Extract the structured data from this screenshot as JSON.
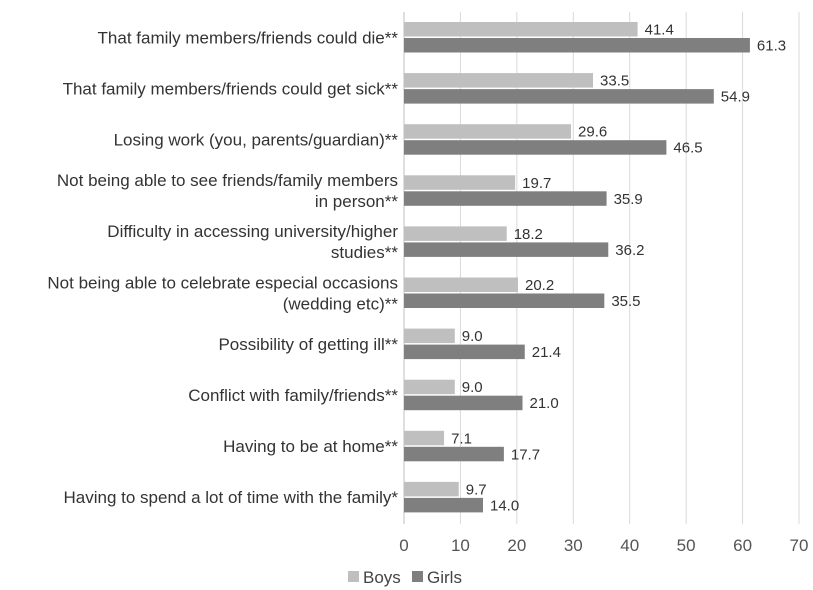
{
  "chart_data": {
    "type": "bar",
    "orientation": "horizontal",
    "categories": [
      [
        "That family members/friends could die**"
      ],
      [
        "That family members/friends could get sick**"
      ],
      [
        "Losing work (you, parents/guardian)**"
      ],
      [
        "Not being able to see friends/family members",
        "in person**"
      ],
      [
        "Difficulty in accessing university/higher",
        "studies**"
      ],
      [
        "Not being able to celebrate especial occasions",
        "(wedding etc)**"
      ],
      [
        "Possibility of getting ill**"
      ],
      [
        "Conflict with family/friends**"
      ],
      [
        "Having to be at home**"
      ],
      [
        "Having to spend a lot of time with the family*"
      ]
    ],
    "series": [
      {
        "name": "Boys",
        "color": "#bfbfbf",
        "values": [
          41.4,
          33.5,
          29.6,
          19.7,
          18.2,
          20.2,
          9.0,
          9.0,
          7.1,
          9.7
        ],
        "labels": [
          "41.4",
          "33.5",
          "29.6",
          "19.7",
          "18.2",
          "20.2",
          "9.0",
          "9.0",
          "7.1",
          "9.7"
        ]
      },
      {
        "name": "Girls",
        "color": "#7f7f7f",
        "values": [
          61.3,
          54.9,
          46.5,
          35.9,
          36.2,
          35.5,
          21.4,
          21.0,
          17.7,
          14.0
        ],
        "labels": [
          "61.3",
          "54.9",
          "46.5",
          "35.9",
          "36.2",
          "35.5",
          "21.4",
          "21.0",
          "17.7",
          "14.0"
        ]
      }
    ],
    "xlim": [
      0,
      70
    ],
    "xticks": [
      "0",
      "10",
      "20",
      "30",
      "40",
      "50",
      "60",
      "70"
    ],
    "grid": true,
    "legend_position": "bottom-center"
  }
}
